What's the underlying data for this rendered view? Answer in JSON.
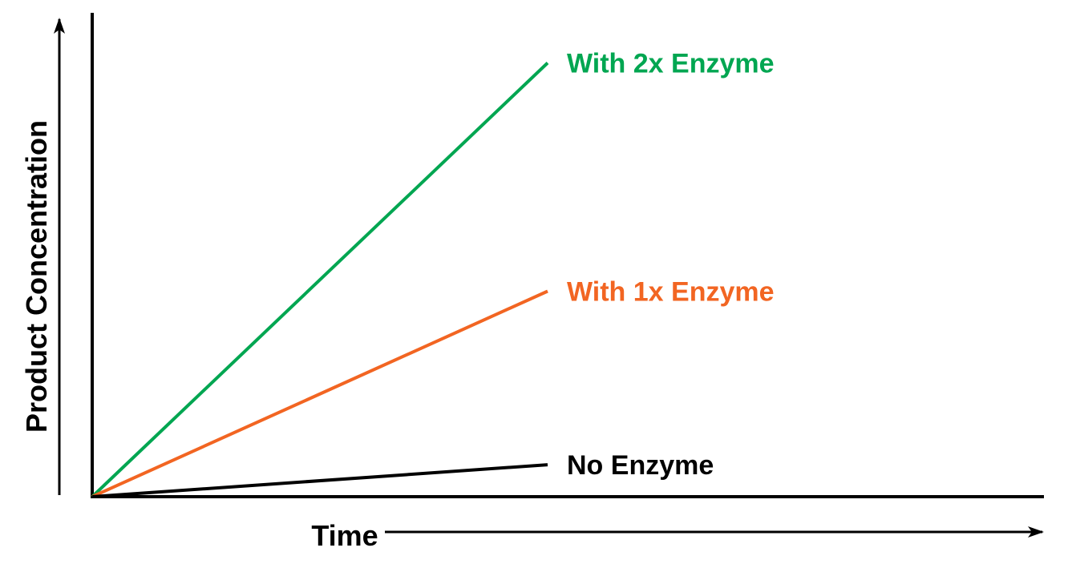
{
  "chart_data": {
    "type": "line",
    "title": "",
    "xlabel": "Time",
    "ylabel": "Product Concentration",
    "xlim": [
      0,
      10
    ],
    "ylim": [
      0,
      10
    ],
    "grid": false,
    "legend": "inline-labels",
    "axis_color": "#000000",
    "series": [
      {
        "name": "With 2x Enzyme",
        "color": "#00A651",
        "x": [
          0,
          10
        ],
        "y": [
          0,
          9.5
        ]
      },
      {
        "name": "With 1x Enzyme",
        "color": "#F26522",
        "x": [
          0,
          10
        ],
        "y": [
          0,
          4.5
        ]
      },
      {
        "name": "No Enzyme",
        "color": "#000000",
        "x": [
          0,
          10
        ],
        "y": [
          0,
          0.7
        ]
      }
    ]
  }
}
